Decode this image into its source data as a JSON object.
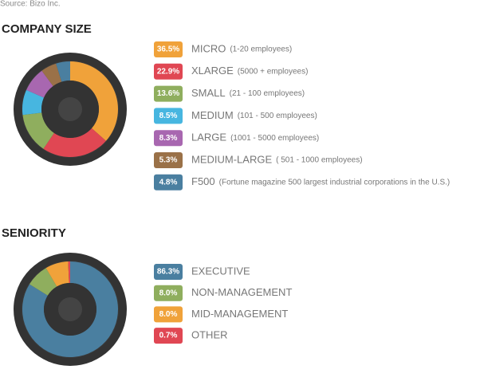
{
  "source": "Source: Bizo Inc.",
  "chart_data": [
    {
      "type": "pie",
      "title": "COMPANY SIZE",
      "categories": [
        "MICRO",
        "XLARGE",
        "SMALL",
        "MEDIUM",
        "LARGE",
        "MEDIUM-LARGE",
        "F500"
      ],
      "details": [
        "(1-20 employees)",
        "(5000 + employees)",
        "(21 - 100 employees)",
        "(101  - 500 employees)",
        "(1001 - 5000 employees)",
        "( 501 - 1000 employees)",
        "(Fortune magazine 500 largest industrial corporations in the U.S.)"
      ],
      "values": [
        36.5,
        22.9,
        13.6,
        8.5,
        8.3,
        5.3,
        4.8
      ],
      "value_labels": [
        "36.5%",
        "22.9%",
        "13.6%",
        "8.5%",
        "8.3%",
        "5.3%",
        "4.8%"
      ],
      "colors": [
        "#f0a23a",
        "#e04753",
        "#8fae5e",
        "#47b6e0",
        "#a867b0",
        "#9a7148",
        "#4a7fa0"
      ]
    },
    {
      "type": "pie",
      "title": "SENIORITY",
      "categories": [
        "EXECUTIVE",
        "NON-MANAGEMENT",
        "MID-MANAGEMENT",
        "OTHER"
      ],
      "values": [
        86.3,
        8.0,
        8.0,
        0.7
      ],
      "value_labels": [
        "86.3%",
        "8.0%",
        "8.0%",
        "0.7%"
      ],
      "colors": [
        "#4a7fa0",
        "#8fae5e",
        "#f0a23a",
        "#e04753"
      ]
    }
  ]
}
